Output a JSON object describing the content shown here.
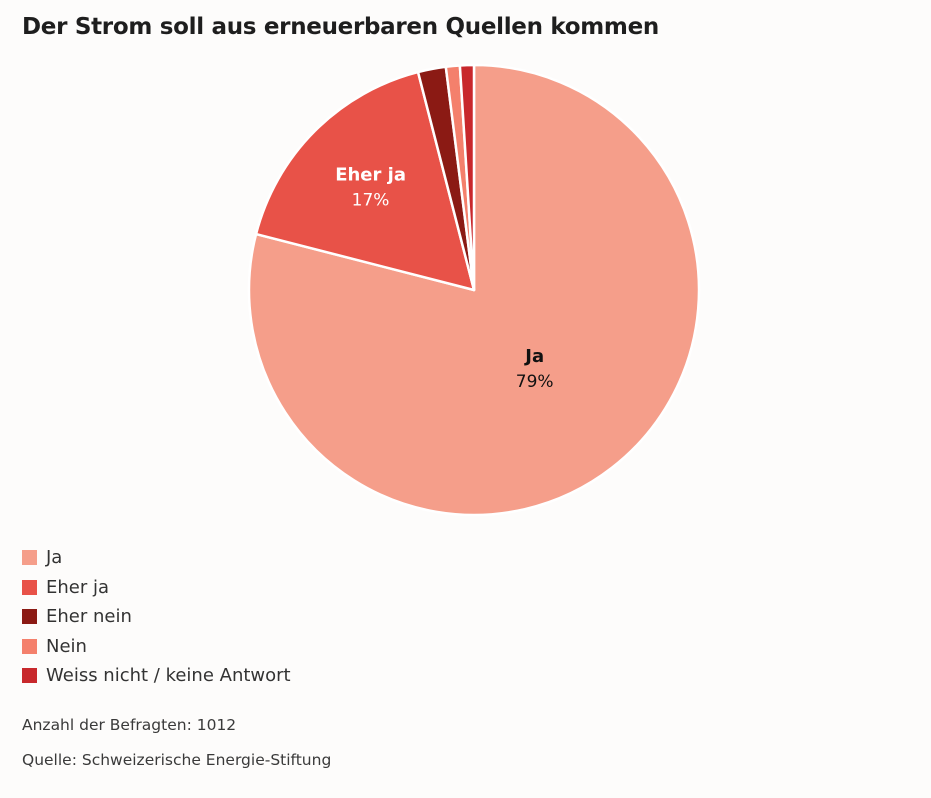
{
  "header": {
    "title": "Der Strom soll aus erneuerbaren Quellen kommen"
  },
  "chart_data": {
    "type": "pie",
    "categories": [
      "Ja",
      "Eher ja",
      "Eher nein",
      "Nein",
      "Weiss nicht / keine Antwort"
    ],
    "values": [
      79,
      17,
      2,
      1,
      1
    ],
    "colors": [
      "#f59e8a",
      "#e85248",
      "#8b1a14",
      "#f4806c",
      "#c8282c"
    ],
    "data_labels": [
      {
        "category": "Ja",
        "name": "Ja",
        "value": "79%"
      },
      {
        "category": "Eher ja",
        "name": "Eher ja",
        "value": "17%"
      }
    ],
    "legend_placement": "bottom-left"
  },
  "legend": {
    "items": [
      {
        "label": "Ja",
        "color": "#f59e8a"
      },
      {
        "label": "Eher ja",
        "color": "#e85248"
      },
      {
        "label": "Eher nein",
        "color": "#8b1a14"
      },
      {
        "label": "Nein",
        "color": "#f4806c"
      },
      {
        "label": "Weiss nicht / keine Antwort",
        "color": "#c8282c"
      }
    ]
  },
  "footer": {
    "respondents": "Anzahl der Befragten: 1012",
    "source": "Quelle: Schweizerische Energie-Stiftung"
  }
}
